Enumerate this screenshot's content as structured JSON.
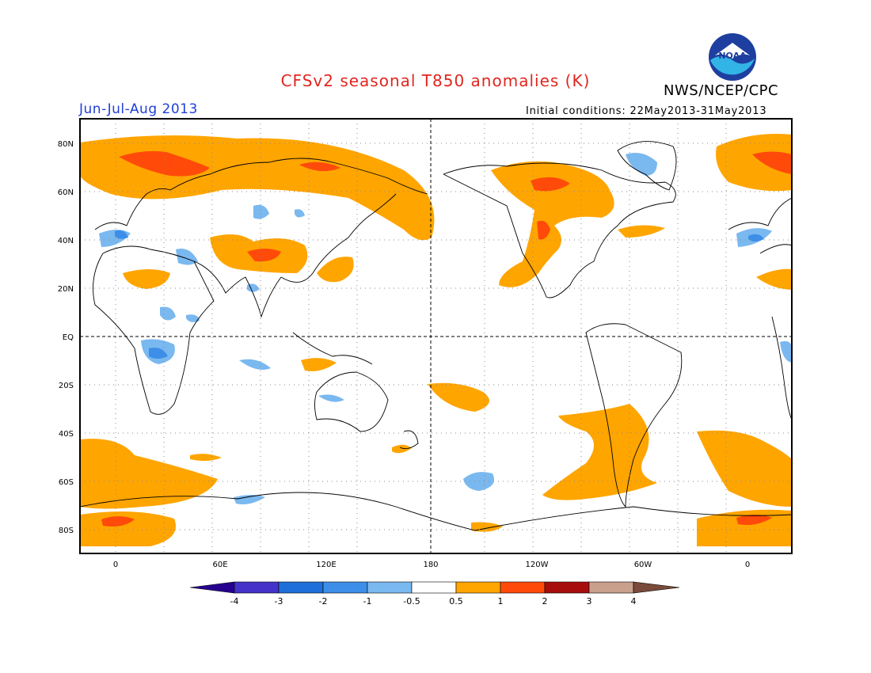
{
  "title": "CFSv2 seasonal T850 anomalies (K)",
  "agency": "NWS/NCEP/CPC",
  "logo_text": "NOAA",
  "season": "Jun-Jul-Aug 2013",
  "init_conditions": "Initial conditions: 22May2013-31May2013",
  "lat_labels": [
    "80N",
    "60N",
    "40N",
    "20N",
    "EQ",
    "20S",
    "40S",
    "60S",
    "80S"
  ],
  "lon_labels": [
    "0",
    "60E",
    "120E",
    "180",
    "120W",
    "60W",
    "0"
  ],
  "colorbar": {
    "labels": [
      "-4",
      "-3",
      "-2",
      "-1",
      "-0.5",
      "0.5",
      "1",
      "2",
      "3",
      "4"
    ],
    "colors": [
      "#26008f",
      "#4433c8",
      "#1f6fd8",
      "#3d8ee8",
      "#7ab8f0",
      "#ffffff",
      "#ffa500",
      "#ff4a0a",
      "#a80d0d",
      "#c9a08c",
      "#7a4a3a"
    ]
  },
  "colors": {
    "title": "#e0261f",
    "season": "#1f3fd6",
    "positive_weak": "#ffa500",
    "positive_strong": "#ff4a0a",
    "negative_weak": "#7ab8f0",
    "negative_strong": "#3d8ee8"
  }
}
